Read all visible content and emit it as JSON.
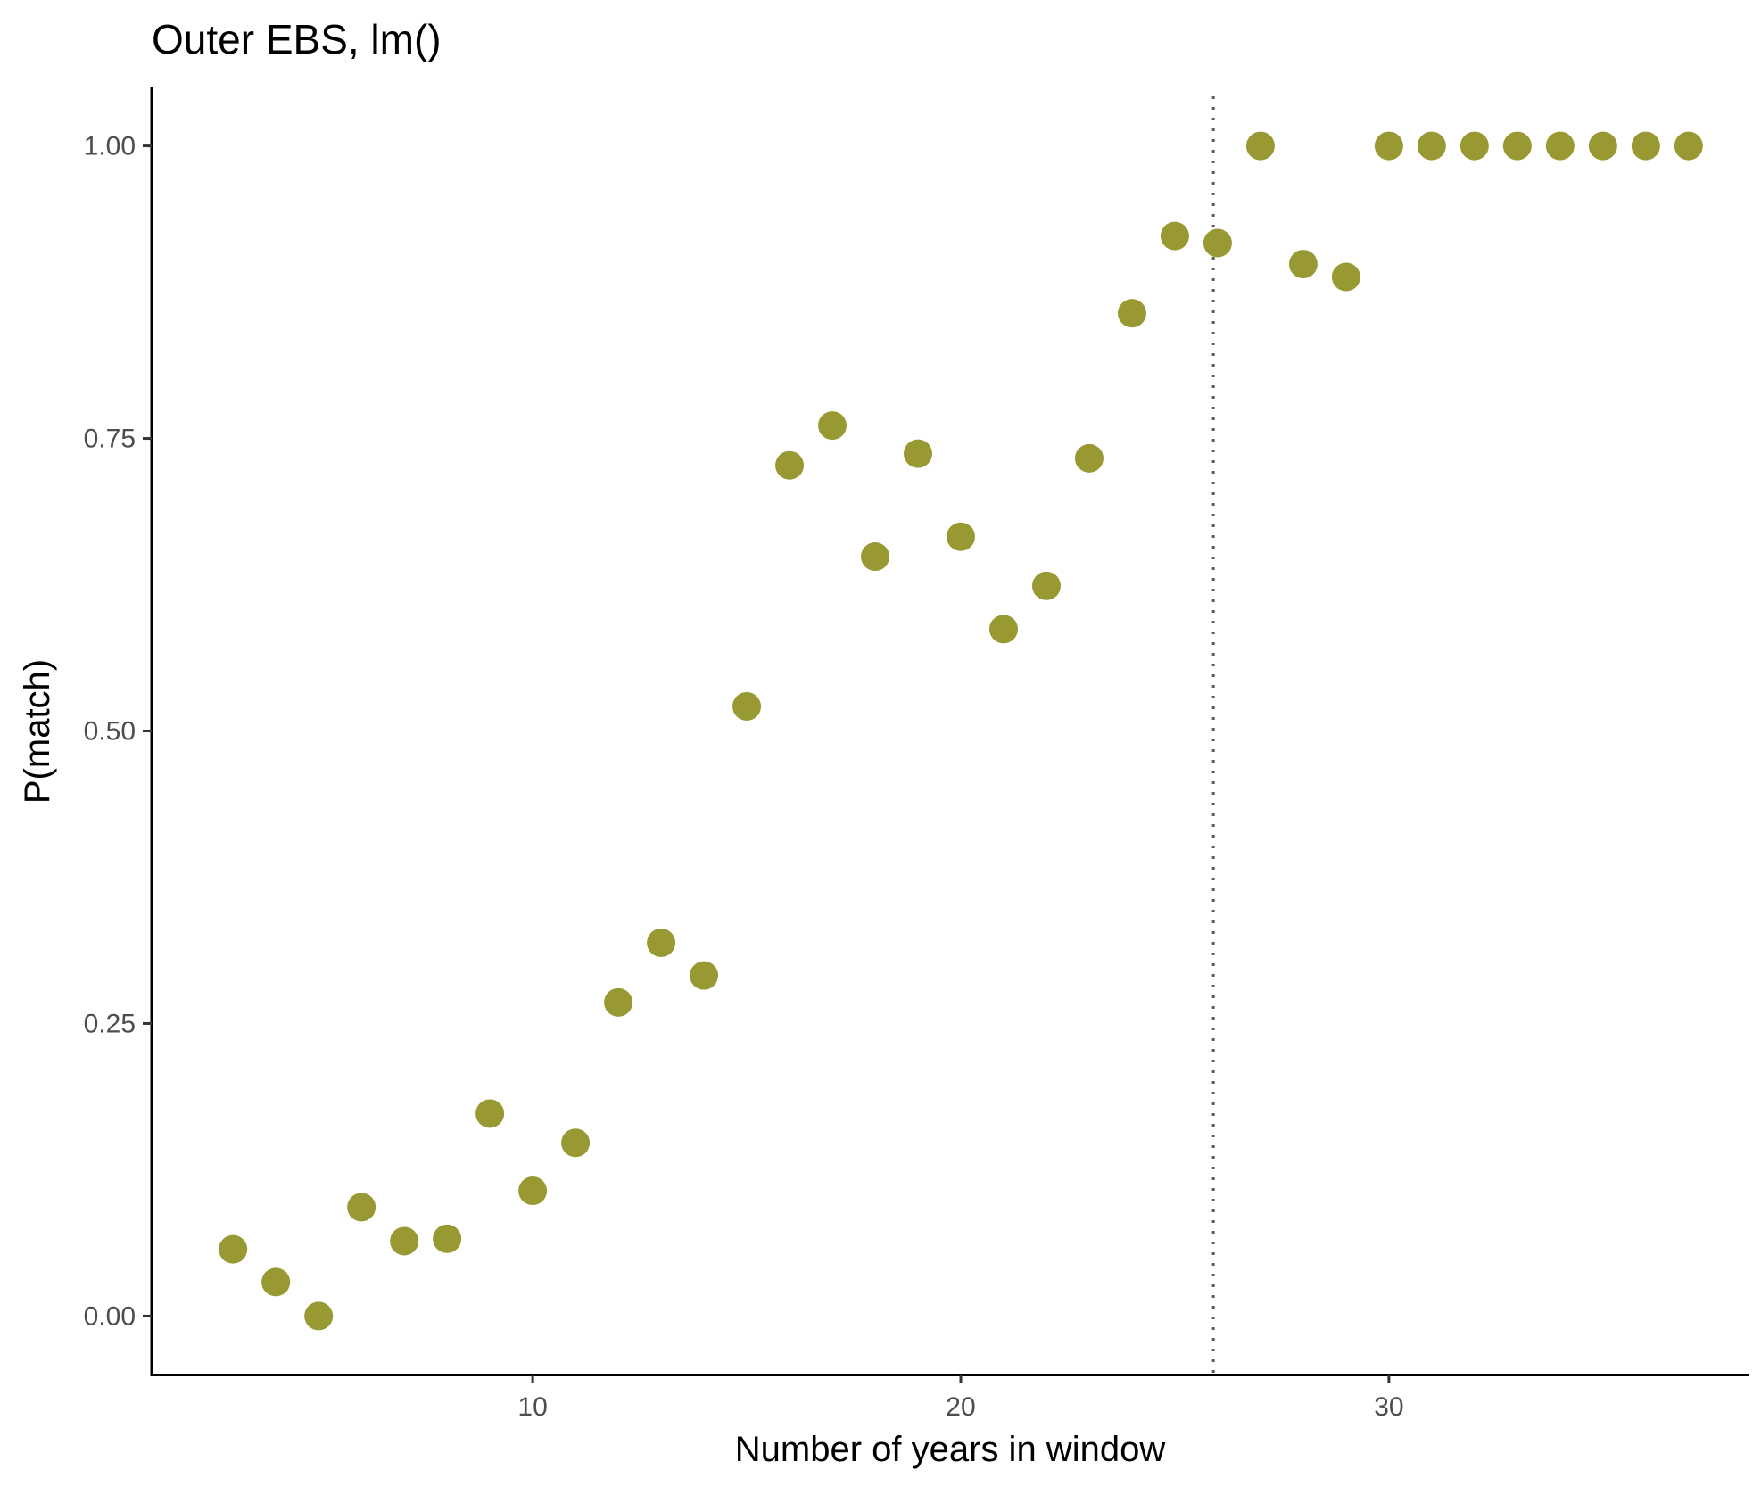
{
  "chart_data": {
    "type": "scatter",
    "title": "Outer EBS, lm()",
    "xlabel": "Number of years in window",
    "ylabel": "P(match)",
    "xlim": [
      1.1,
      38.4
    ],
    "ylim": [
      -0.05,
      1.05
    ],
    "xticks": [
      10,
      20,
      30
    ],
    "xtick_labels": [
      "10",
      "20",
      "30"
    ],
    "yticks": [
      0,
      0.25,
      0.5,
      0.75,
      1
    ],
    "ytick_labels": [
      "0.00",
      "0.25",
      "0.50",
      "0.75",
      "1.00"
    ],
    "grid": false,
    "legend": "none",
    "reference_line": {
      "orientation": "vertical",
      "x": 25.9,
      "style": "dotted",
      "color": "#666666"
    },
    "point_color": "#999933",
    "x": [
      3,
      4,
      5,
      6,
      7,
      8,
      9,
      10,
      11,
      12,
      13,
      14,
      15,
      16,
      17,
      18,
      19,
      20,
      21,
      22,
      23,
      24,
      25,
      26,
      27,
      28,
      29,
      30,
      31,
      32,
      33,
      34,
      35,
      36,
      37
    ],
    "y": [
      0.057,
      0.029,
      0.0,
      0.093,
      0.064,
      0.066,
      0.173,
      0.107,
      0.148,
      0.268,
      0.319,
      0.291,
      0.521,
      0.727,
      0.761,
      0.649,
      0.737,
      0.666,
      0.587,
      0.624,
      0.733,
      0.857,
      0.923,
      0.917,
      1.0,
      0.899,
      0.888,
      1.0,
      1.0,
      1.0,
      1.0,
      1.0,
      1.0,
      1.0,
      1.0
    ]
  }
}
